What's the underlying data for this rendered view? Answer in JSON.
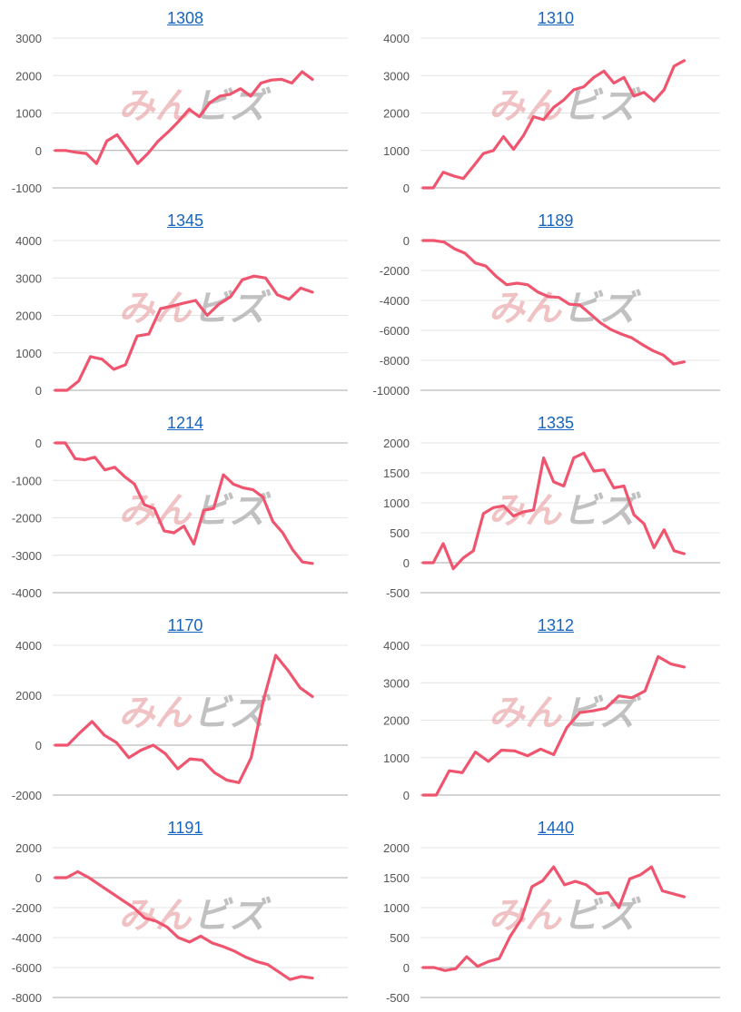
{
  "colors": {
    "line": "#f0556f",
    "grid": "#e4e4e4",
    "axis": "#aaaaaa",
    "title": "#1565c0"
  },
  "watermark": "みんビズ",
  "chart_data": [
    {
      "type": "line",
      "title": "1308",
      "ylim": [
        -1000,
        3000
      ],
      "yticks": [
        3000,
        2000,
        1000,
        0,
        -1000
      ],
      "values": [
        0,
        0,
        -50,
        -80,
        -350,
        250,
        420,
        50,
        -350,
        -80,
        250,
        500,
        780,
        1100,
        900,
        1270,
        1450,
        1500,
        1650,
        1450,
        1800,
        1880,
        1900,
        1800,
        2100,
        1900
      ]
    },
    {
      "type": "line",
      "title": "1310",
      "ylim": [
        0,
        4000
      ],
      "yticks": [
        4000,
        3000,
        2000,
        1000,
        0
      ],
      "values": [
        0,
        0,
        420,
        320,
        250,
        580,
        920,
        1000,
        1370,
        1030,
        1400,
        1900,
        1820,
        2150,
        2350,
        2620,
        2700,
        2950,
        3120,
        2800,
        2950,
        2450,
        2550,
        2320,
        2620,
        3250,
        3400
      ]
    },
    {
      "type": "line",
      "title": "1345",
      "ylim": [
        0,
        4000
      ],
      "yticks": [
        4000,
        3000,
        2000,
        1000,
        0
      ],
      "values": [
        0,
        0,
        250,
        900,
        830,
        560,
        680,
        1450,
        1500,
        2180,
        2250,
        2330,
        2400,
        2000,
        2300,
        2500,
        2950,
        3050,
        3000,
        2550,
        2430,
        2730,
        2620
      ]
    },
    {
      "type": "line",
      "title": "1189",
      "ylim": [
        -10000,
        0
      ],
      "yticks": [
        0,
        -2000,
        -4000,
        -6000,
        -8000,
        -10000
      ],
      "values": [
        0,
        0,
        -100,
        -550,
        -850,
        -1500,
        -1700,
        -2400,
        -2950,
        -2850,
        -2950,
        -3450,
        -3750,
        -3800,
        -4250,
        -4300,
        -4900,
        -5500,
        -5950,
        -6250,
        -6500,
        -6950,
        -7350,
        -7650,
        -8250,
        -8100
      ]
    },
    {
      "type": "line",
      "title": "1214",
      "ylim": [
        -4000,
        0
      ],
      "yticks": [
        0,
        -1000,
        -2000,
        -3000,
        -4000
      ],
      "values": [
        0,
        0,
        -420,
        -450,
        -380,
        -720,
        -650,
        -900,
        -1100,
        -1650,
        -1750,
        -2350,
        -2400,
        -2220,
        -2700,
        -1800,
        -1750,
        -850,
        -1100,
        -1200,
        -1250,
        -1450,
        -2100,
        -2400,
        -2850,
        -3180,
        -3220
      ]
    },
    {
      "type": "line",
      "title": "1335",
      "ylim": [
        -500,
        2000
      ],
      "yticks": [
        2000,
        1500,
        1000,
        500,
        0,
        -500
      ],
      "values": [
        0,
        0,
        320,
        -100,
        80,
        200,
        820,
        920,
        950,
        780,
        850,
        880,
        1750,
        1350,
        1280,
        1750,
        1830,
        1530,
        1550,
        1250,
        1280,
        800,
        650,
        250,
        550,
        200,
        150
      ]
    },
    {
      "type": "line",
      "title": "1170",
      "ylim": [
        -2000,
        4000
      ],
      "yticks": [
        4000,
        2000,
        0,
        -2000
      ],
      "values": [
        0,
        0,
        500,
        950,
        400,
        100,
        -500,
        -200,
        0,
        -350,
        -950,
        -550,
        -600,
        -1100,
        -1400,
        -1500,
        -500,
        1800,
        3600,
        3000,
        2300,
        1950
      ]
    },
    {
      "type": "line",
      "title": "1312",
      "ylim": [
        0,
        4000
      ],
      "yticks": [
        4000,
        3000,
        2000,
        1000,
        0
      ],
      "values": [
        0,
        0,
        650,
        600,
        1150,
        900,
        1200,
        1180,
        1050,
        1230,
        1080,
        1800,
        2200,
        2250,
        2320,
        2650,
        2600,
        2780,
        3700,
        3500,
        3420
      ]
    },
    {
      "type": "line",
      "title": "1191",
      "ylim": [
        -8000,
        2000
      ],
      "yticks": [
        2000,
        0,
        -2000,
        -4000,
        -6000,
        -8000
      ],
      "values": [
        0,
        0,
        400,
        0,
        -500,
        -1000,
        -1500,
        -2000,
        -2700,
        -2900,
        -3300,
        -4000,
        -4300,
        -3900,
        -4350,
        -4600,
        -4900,
        -5300,
        -5600,
        -5800,
        -6300,
        -6800,
        -6600,
        -6700
      ]
    },
    {
      "type": "line",
      "title": "1440",
      "ylim": [
        -500,
        2000
      ],
      "yticks": [
        2000,
        1500,
        1000,
        500,
        0,
        -500
      ],
      "values": [
        0,
        0,
        -50,
        -20,
        180,
        20,
        100,
        150,
        520,
        800,
        1350,
        1450,
        1680,
        1380,
        1440,
        1380,
        1230,
        1250,
        1000,
        1480,
        1550,
        1680,
        1280,
        1230,
        1180
      ]
    }
  ]
}
